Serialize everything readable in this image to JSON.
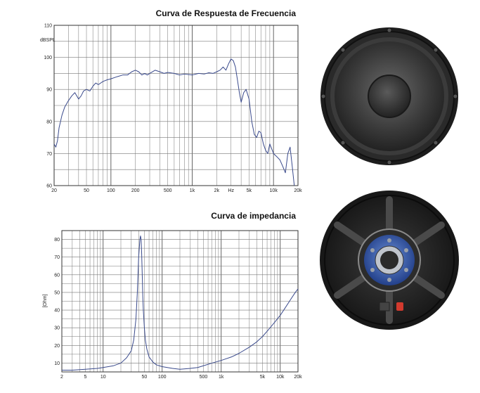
{
  "chart_data": [
    {
      "type": "line",
      "title": "Curva de Respuesta de Frecuencia",
      "ylabel": "dBSPL",
      "xlabel": "",
      "x_scale": "log",
      "xlim": [
        20,
        20000
      ],
      "ylim": [
        60,
        110
      ],
      "x_ticks": [
        {
          "v": 20,
          "t": "20"
        },
        {
          "v": 50,
          "t": "50"
        },
        {
          "v": 100,
          "t": "100"
        },
        {
          "v": 200,
          "t": "200"
        },
        {
          "v": 500,
          "t": "500"
        },
        {
          "v": 1000,
          "t": "1k"
        },
        {
          "v": 2000,
          "t": "2k"
        },
        {
          "v": 3000,
          "t": "Hz"
        },
        {
          "v": 5000,
          "t": "5k"
        },
        {
          "v": 10000,
          "t": "10k"
        },
        {
          "v": 20000,
          "t": "20k"
        }
      ],
      "y_ticks": [
        60,
        70,
        80,
        90,
        100,
        110
      ],
      "grid": true,
      "series": [
        {
          "color": "#3a4a8c",
          "x": [
            20,
            21,
            22,
            23,
            25,
            27,
            30,
            33,
            36,
            40,
            43,
            46,
            50,
            55,
            60,
            65,
            70,
            80,
            90,
            100,
            120,
            140,
            160,
            180,
            200,
            220,
            240,
            260,
            280,
            300,
            350,
            400,
            450,
            500,
            600,
            700,
            800,
            1000,
            1200,
            1400,
            1600,
            1800,
            2000,
            2200,
            2400,
            2600,
            2800,
            3000,
            3200,
            3400,
            3600,
            3800,
            4000,
            4300,
            4600,
            5000,
            5400,
            5800,
            6200,
            6600,
            7000,
            7500,
            8000,
            8500,
            9000,
            10000,
            11000,
            12000,
            13000,
            14000,
            15000,
            16000,
            17000,
            18000
          ],
          "y": [
            73,
            72,
            74,
            78,
            82,
            84.5,
            86.5,
            88,
            89,
            87,
            88,
            89.5,
            90,
            89.5,
            91,
            92,
            91.5,
            92.5,
            93,
            93.3,
            94,
            94.5,
            94.5,
            95.5,
            96,
            95.5,
            94.5,
            95,
            94.5,
            95,
            96,
            95.5,
            95,
            95.3,
            95,
            94.5,
            94.8,
            94.5,
            95,
            94.8,
            95.2,
            95,
            95.5,
            96,
            97,
            96,
            98,
            99.5,
            99,
            97,
            93,
            89,
            86,
            89,
            90,
            87,
            80,
            76,
            75,
            77,
            76.5,
            73,
            71,
            70,
            73,
            70,
            69,
            68,
            66,
            64,
            70,
            72,
            66,
            60
          ]
        }
      ]
    },
    {
      "type": "line",
      "title": "Curva de impedancia",
      "ylabel": "[Ohm]",
      "xlabel": "",
      "x_scale": "log",
      "xlim": [
        2,
        20000
      ],
      "ylim": [
        5,
        85
      ],
      "x_ticks": [
        {
          "v": 2,
          "t": "2"
        },
        {
          "v": 5,
          "t": "5"
        },
        {
          "v": 10,
          "t": "10"
        },
        {
          "v": 50,
          "t": "50"
        },
        {
          "v": 100,
          "t": "100"
        },
        {
          "v": 500,
          "t": "500"
        },
        {
          "v": 1000,
          "t": "1k"
        },
        {
          "v": 5000,
          "t": "5k"
        },
        {
          "v": 10000,
          "t": "10k"
        },
        {
          "v": 20000,
          "t": "20k"
        }
      ],
      "y_ticks": [
        10,
        20,
        30,
        40,
        50,
        60,
        70,
        80
      ],
      "grid": true,
      "series": [
        {
          "color": "#3a4a8c",
          "x": [
            2,
            3,
            5,
            8,
            10,
            15,
            20,
            25,
            30,
            33,
            36,
            38,
            40,
            42,
            43,
            44,
            45,
            46,
            47,
            48,
            50,
            52,
            55,
            60,
            70,
            80,
            100,
            150,
            200,
            300,
            400,
            500,
            700,
            1000,
            1500,
            2000,
            3000,
            4000,
            5000,
            6000,
            8000,
            10000,
            12000,
            15000,
            18000,
            20000
          ],
          "y": [
            6,
            6,
            6.5,
            7,
            7.5,
            8.5,
            10,
            13,
            17,
            23,
            35,
            50,
            70,
            80,
            82,
            80,
            72,
            60,
            48,
            40,
            30,
            23,
            18,
            13.5,
            10.5,
            9,
            8,
            7,
            6.5,
            7,
            7.5,
            8.5,
            10,
            11.5,
            13.5,
            15.5,
            19,
            22,
            25,
            28,
            33,
            37,
            41,
            46,
            50,
            52
          ]
        }
      ]
    }
  ]
}
